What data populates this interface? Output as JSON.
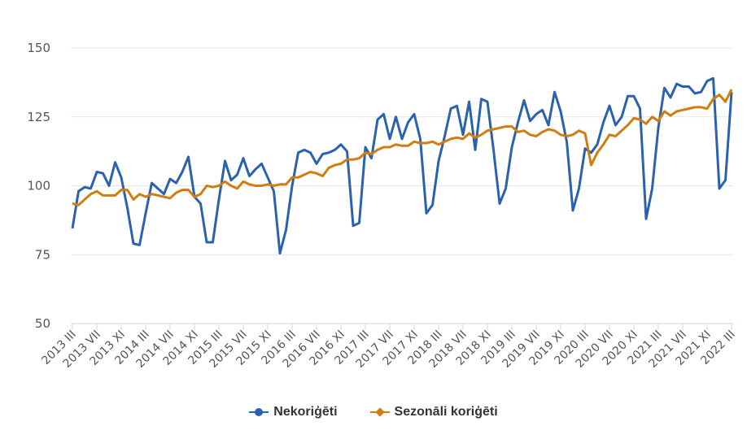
{
  "chart_data": {
    "type": "line",
    "title": "",
    "xlabel": "",
    "ylabel": "",
    "ylim": [
      50,
      150
    ],
    "yticks": [
      "50",
      "75",
      "100",
      "125",
      "150"
    ],
    "grid": true,
    "legend_position": "bottom-center",
    "x_tick_labels": [
      "2013 III",
      "2013 VII",
      "2013 XI",
      "2014 III",
      "2014 VII",
      "2014 XI",
      "2015 III",
      "2015 VII",
      "2015 XI",
      "2016 III",
      "2016 VII",
      "2016 XI",
      "2017 III",
      "2017 VII",
      "2017 XI",
      "2018 III",
      "2018 VII",
      "2018 XI",
      "2019 III",
      "2019 VII",
      "2019 XI",
      "2020 III",
      "2020 VII",
      "2020 XI",
      "2021 III",
      "2021 VII",
      "2021 XI",
      "2022 III"
    ],
    "x_start": "2013 III",
    "x_end": "2022 III",
    "series": [
      {
        "name": "Nekoriģēti",
        "color": "#2a62b0",
        "values": [
          84.5,
          98,
          99.5,
          99,
          105,
          104.5,
          100,
          108.5,
          103,
          92,
          79,
          78.5,
          90,
          101,
          99,
          97,
          102.5,
          101,
          105,
          110.5,
          96,
          93.5,
          79.5,
          79.5,
          95,
          109,
          102,
          104,
          110,
          103.5,
          106,
          108,
          103,
          98,
          75.5,
          84,
          100,
          112,
          113,
          112,
          108,
          111.5,
          112,
          113,
          115,
          112.5,
          85.5,
          86.5,
          114,
          110,
          124,
          126,
          117,
          125,
          117,
          123,
          126,
          117,
          90,
          93,
          109,
          118,
          128,
          129,
          118.5,
          130.5,
          113,
          131.5,
          130.5,
          113,
          93.5,
          99,
          114,
          123,
          131,
          123.5,
          126,
          127.5,
          122,
          134,
          127,
          116,
          91,
          99,
          113.5,
          112,
          115,
          123,
          129,
          122,
          125,
          132.5,
          132.5,
          128,
          88,
          99,
          121,
          135.5,
          132,
          137,
          136,
          136,
          133.5,
          134,
          138,
          139,
          99,
          102,
          134
        ]
      },
      {
        "name": "Sezonāli koriģēti",
        "color": "#d07d12",
        "values": [
          93.5,
          93,
          95,
          97,
          98,
          96.5,
          96.5,
          96.5,
          98.5,
          98.5,
          95,
          97,
          96,
          97,
          96.5,
          96,
          95.5,
          97.5,
          98.5,
          98.5,
          96,
          97,
          100,
          99.5,
          100,
          101.5,
          100,
          99,
          101.5,
          100.5,
          100,
          100,
          100.5,
          100,
          100.5,
          100.5,
          103,
          103,
          104,
          105,
          104.5,
          103.5,
          106.5,
          107.5,
          108,
          109.5,
          109.5,
          110,
          112,
          111.5,
          113,
          114,
          114,
          115,
          114.5,
          114.5,
          116,
          115.5,
          115.5,
          116,
          115,
          116,
          117,
          117.5,
          117,
          119,
          117.5,
          118.5,
          120,
          120.5,
          121,
          121.5,
          121.5,
          119.5,
          120,
          118.5,
          118,
          119.5,
          120.5,
          120,
          118.5,
          118,
          118.5,
          120,
          119,
          107.5,
          112,
          115,
          118.5,
          118,
          120,
          122,
          124.5,
          124,
          122.5,
          125,
          123.5,
          127,
          125.5,
          127,
          127.5,
          128,
          128.5,
          128.5,
          128,
          131.5,
          133,
          130.5,
          135
        ]
      }
    ]
  }
}
